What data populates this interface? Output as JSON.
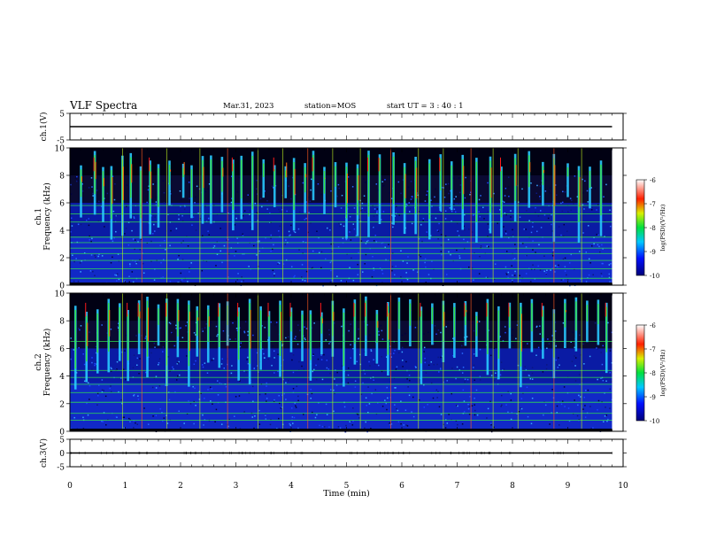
{
  "header": {
    "title": "VLF Spectra",
    "date": "Mar.31, 2023",
    "station": "station=MOS",
    "start": "start  UT =   3 : 40 : 1"
  },
  "chart_data": [
    {
      "type": "line",
      "title": "",
      "xlabel": "",
      "ylabel": "ch.1(V)",
      "xlim": [
        0,
        10
      ],
      "ylim": [
        -5,
        5
      ],
      "yticks": [
        "5",
        "-5"
      ],
      "series": [
        {
          "x": [
            0,
            9.8
          ],
          "values": [
            0,
            0
          ]
        }
      ]
    },
    {
      "type": "heatmap",
      "xlabel": "",
      "ylabel": "ch.1\nFrequency (kHz)",
      "xlim": [
        0,
        10
      ],
      "ylim": [
        0,
        10
      ],
      "yticks": [
        "0",
        "2",
        "4",
        "6",
        "8",
        "10"
      ],
      "colorbar": {
        "ticks": [
          "-6",
          "-7",
          "-8",
          "-9",
          "-10"
        ],
        "label": "log(PSD)(V²/Hz)",
        "range": [
          -10,
          -6
        ]
      },
      "bursts_min": [
        0.2,
        0.45,
        0.6,
        0.75,
        0.95,
        1.1,
        1.28,
        1.45,
        1.6,
        1.8,
        2.05,
        2.2,
        2.4,
        2.55,
        2.75,
        2.95,
        3.1,
        3.3,
        3.5,
        3.7,
        3.9,
        4.05,
        4.25,
        4.4,
        4.6,
        4.8,
        5.0,
        5.2,
        5.4,
        5.6,
        5.85,
        6.05,
        6.25,
        6.5,
        6.7,
        6.9,
        7.1,
        7.35,
        7.6,
        7.8,
        8.05,
        8.3,
        8.55,
        8.75,
        9.0,
        9.2,
        9.4,
        9.6
      ],
      "lines_khz": [
        0.5,
        1.2,
        1.8,
        2.3,
        2.7,
        3.1,
        3.5,
        4.6,
        5.2,
        5.8
      ]
    },
    {
      "type": "heatmap",
      "xlabel": "",
      "ylabel": "ch.2\nFrequency (kHz)",
      "xlim": [
        0,
        10
      ],
      "ylim": [
        0,
        10
      ],
      "yticks": [
        "0",
        "2",
        "4",
        "6",
        "8",
        "10"
      ],
      "colorbar": {
        "ticks": [
          "-6",
          "-7",
          "-8",
          "-9",
          "-10"
        ],
        "label": "log(PSD)(V²/Hz)",
        "range": [
          -10,
          -6
        ]
      },
      "bursts_min": [
        0.1,
        0.3,
        0.5,
        0.7,
        0.9,
        1.05,
        1.25,
        1.4,
        1.6,
        1.75,
        1.95,
        2.15,
        2.3,
        2.5,
        2.7,
        2.85,
        3.05,
        3.25,
        3.45,
        3.6,
        3.8,
        4.0,
        4.2,
        4.35,
        4.55,
        4.75,
        4.95,
        5.15,
        5.35,
        5.55,
        5.75,
        5.95,
        6.15,
        6.35,
        6.55,
        6.75,
        6.95,
        7.15,
        7.35,
        7.55,
        7.75,
        7.95,
        8.15,
        8.35,
        8.55,
        8.75,
        8.95,
        9.15,
        9.35,
        9.55,
        9.7
      ],
      "lines_khz": [
        0.8,
        1.3,
        2.1,
        2.8,
        3.4,
        3.9,
        4.4,
        6.5
      ]
    },
    {
      "type": "line",
      "title": "",
      "xlabel": "Time (min)",
      "ylabel": "ch.3(V)",
      "xlim": [
        0,
        10
      ],
      "ylim": [
        -5,
        5
      ],
      "yticks": [
        "5",
        "0",
        "-5"
      ],
      "xticks": [
        "0",
        "1",
        "2",
        "3",
        "4",
        "5",
        "6",
        "7",
        "8",
        "9",
        "10"
      ],
      "series": [
        {
          "x": [
            0,
            9.8
          ],
          "values": [
            0,
            0
          ]
        }
      ]
    }
  ],
  "vertical_lines_min": [
    0.95,
    1.3,
    1.75,
    2.35,
    2.85,
    3.4,
    3.85,
    4.3,
    4.75,
    5.25,
    5.8,
    6.3,
    6.75,
    7.25,
    7.65,
    8.1,
    8.75,
    9.25
  ]
}
